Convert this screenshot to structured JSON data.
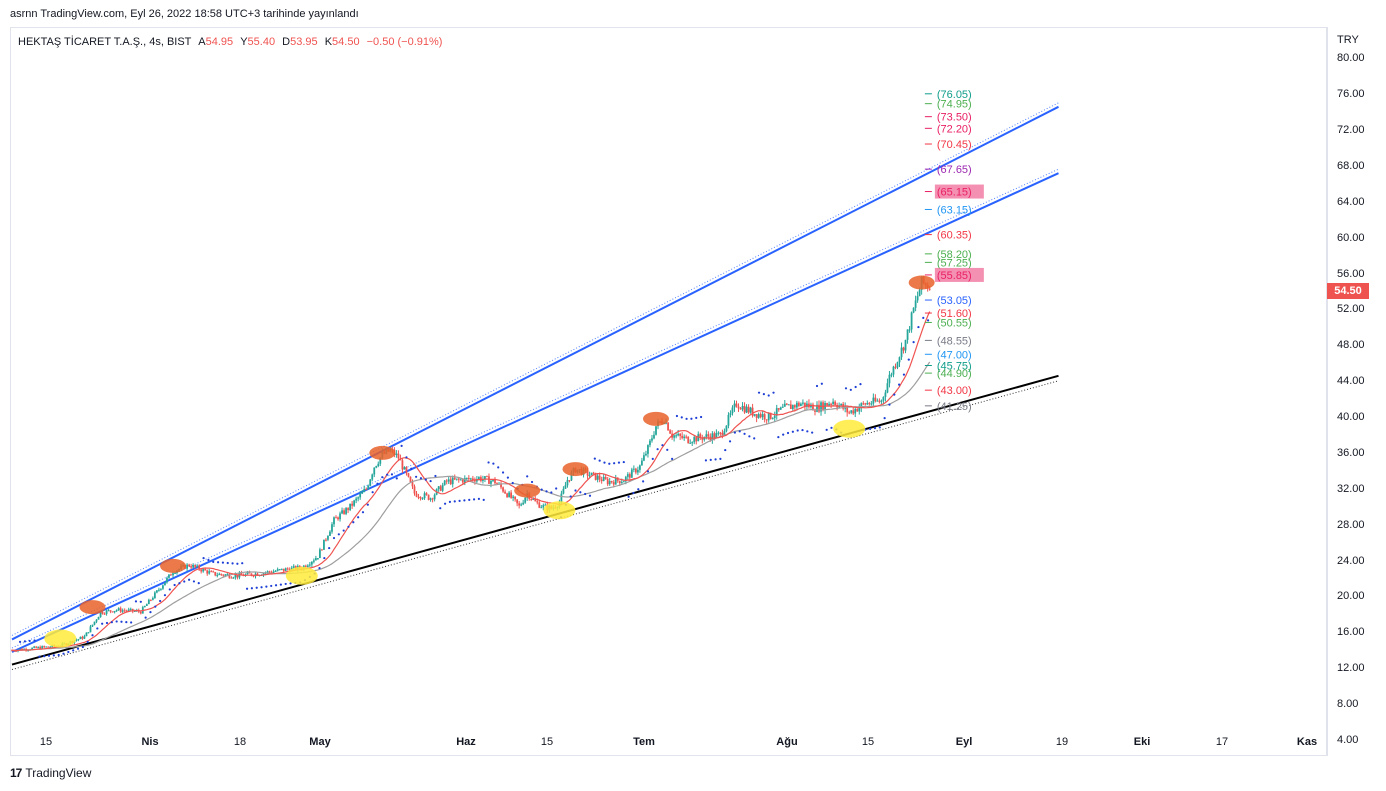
{
  "header": {
    "published": "asrnn TradingView.com, Eyl 26, 2022 18:58 UTC+3 tarihinde yayınlandı"
  },
  "legend": {
    "symbol": "HEKTAŞ TİCARET T.A.Ş., 4s, BIST",
    "open_label": "A",
    "open": "54.95",
    "high_label": "Y",
    "high": "55.40",
    "low_label": "D",
    "low": "53.95",
    "close_label": "K",
    "close": "54.50",
    "change": "−0.50 (−0.91%)"
  },
  "axis": {
    "currency": "TRY",
    "last_price": "54.50",
    "price_ticks": [
      "80.00",
      "76.00",
      "72.00",
      "68.00",
      "64.00",
      "60.00",
      "56.00",
      "52.00",
      "48.00",
      "44.00",
      "40.00",
      "36.00",
      "32.00",
      "28.00",
      "24.00",
      "20.00",
      "16.00",
      "12.00",
      "8.00",
      "4.00"
    ]
  },
  "brand": {
    "name": "TradingView",
    "logo_text": "17"
  },
  "colors": {
    "up": "#26a69a",
    "down": "#ef5350",
    "channel": "#2962ff",
    "support": "#000000",
    "sar": "#1e3fd6",
    "ma_fast": "#ef5350",
    "ma_slow": "#9e9e9e",
    "touch_top": "#e8622a",
    "touch_bottom": "#ffeb3b"
  },
  "chart_data": {
    "type": "candlestick",
    "title": "HEKTAŞ TİCARET T.A.Ş., 4s, BIST",
    "ylabel": "TRY",
    "ylim": [
      2.2,
      83.5
    ],
    "x_ticks": [
      {
        "label": "15",
        "bold": false
      },
      {
        "label": "Nis",
        "bold": true
      },
      {
        "label": "18",
        "bold": false
      },
      {
        "label": "May",
        "bold": true
      },
      {
        "label": "Haz",
        "bold": true
      },
      {
        "label": "15",
        "bold": false
      },
      {
        "label": "Tem",
        "bold": true
      },
      {
        "label": "Ağu",
        "bold": true
      },
      {
        "label": "15",
        "bold": false
      },
      {
        "label": "Eyl",
        "bold": true
      },
      {
        "label": "19",
        "bold": false
      },
      {
        "label": "Eki",
        "bold": true
      },
      {
        "label": "17",
        "bold": false
      },
      {
        "label": "Kas",
        "bold": true
      }
    ],
    "price_path": [
      [
        0,
        14.0
      ],
      [
        6,
        14.5
      ],
      [
        9,
        15.5
      ],
      [
        11,
        18.2
      ],
      [
        13,
        18.5
      ],
      [
        16,
        18.3
      ],
      [
        18,
        20.5
      ],
      [
        20,
        22.8
      ],
      [
        22,
        23.5
      ],
      [
        25,
        22.5
      ],
      [
        28,
        22.3
      ],
      [
        31,
        22.6
      ],
      [
        34,
        23.0
      ],
      [
        36,
        23.2
      ],
      [
        38,
        24.5
      ],
      [
        40,
        28.5
      ],
      [
        42,
        30.0
      ],
      [
        44,
        32.0
      ],
      [
        45,
        34.5
      ],
      [
        46,
        35.8
      ],
      [
        47,
        36.3
      ],
      [
        48,
        35.5
      ],
      [
        50,
        31.5
      ],
      [
        52,
        31.0
      ],
      [
        54,
        32.8
      ],
      [
        56,
        33.0
      ],
      [
        58,
        33.2
      ],
      [
        60,
        32.8
      ],
      [
        62,
        31.0
      ],
      [
        63,
        30.0
      ],
      [
        64,
        31.5
      ],
      [
        65,
        30.5
      ],
      [
        66,
        30.0
      ],
      [
        67,
        29.8
      ],
      [
        68,
        30.5
      ],
      [
        69,
        33.0
      ],
      [
        70,
        34.2
      ],
      [
        72,
        33.5
      ],
      [
        74,
        32.8
      ],
      [
        76,
        33.0
      ],
      [
        78,
        34.5
      ],
      [
        79,
        36.5
      ],
      [
        80,
        39.0
      ],
      [
        81,
        39.8
      ],
      [
        82,
        38.0
      ],
      [
        84,
        37.5
      ],
      [
        86,
        37.8
      ],
      [
        88,
        38.0
      ],
      [
        90,
        41.5
      ],
      [
        92,
        40.5
      ],
      [
        94,
        40.0
      ],
      [
        96,
        41.0
      ],
      [
        98,
        41.5
      ],
      [
        100,
        41.0
      ],
      [
        102,
        41.8
      ],
      [
        104,
        40.5
      ],
      [
        106,
        41.5
      ],
      [
        108,
        41.8
      ],
      [
        109,
        44.5
      ],
      [
        110,
        46.5
      ],
      [
        111,
        48.5
      ],
      [
        112,
        52.0
      ],
      [
        113,
        55.0
      ],
      [
        114,
        54.5
      ]
    ],
    "trend_lines": [
      {
        "name": "upper channel",
        "points": [
          [
            0,
            15.2
          ],
          [
            130,
            74.6
          ]
        ]
      },
      {
        "name": "middle channel",
        "points": [
          [
            0,
            13.8
          ],
          [
            130,
            67.2
          ]
        ]
      },
      {
        "name": "support",
        "points": [
          [
            0,
            12.4
          ],
          [
            130,
            44.6
          ]
        ]
      }
    ],
    "levels": [
      {
        "value": 76.05,
        "label": "(76.05)",
        "color": "#0f9d8a",
        "highlight": false
      },
      {
        "value": 74.95,
        "label": "(74.95)",
        "color": "#4caf50",
        "highlight": false
      },
      {
        "value": 73.5,
        "label": "(73.50)",
        "color": "#e91e63",
        "highlight": false
      },
      {
        "value": 72.2,
        "label": "(72.20)",
        "color": "#e91e63",
        "highlight": false
      },
      {
        "value": 70.45,
        "label": "(70.45)",
        "color": "#f23645",
        "highlight": false
      },
      {
        "value": 67.65,
        "label": "(67.65)",
        "color": "#9c27b0",
        "highlight": false
      },
      {
        "value": 65.15,
        "label": "(65.15)",
        "color": "#e91e63",
        "highlight": true
      },
      {
        "value": 63.15,
        "label": "(63.15)",
        "color": "#2196f3",
        "highlight": false
      },
      {
        "value": 60.35,
        "label": "(60.35)",
        "color": "#f23645",
        "highlight": false
      },
      {
        "value": 58.2,
        "label": "(58.20)",
        "color": "#4caf50",
        "highlight": false
      },
      {
        "value": 57.25,
        "label": "(57.25)",
        "color": "#4caf50",
        "highlight": false
      },
      {
        "value": 55.85,
        "label": "(55.85)",
        "color": "#e91e63",
        "highlight": true
      },
      {
        "value": 53.05,
        "label": "(53.05)",
        "color": "#2962ff",
        "highlight": false
      },
      {
        "value": 51.6,
        "label": "(51.60)",
        "color": "#f23645",
        "highlight": false
      },
      {
        "value": 50.55,
        "label": "(50.55)",
        "color": "#4caf50",
        "highlight": false
      },
      {
        "value": 48.55,
        "label": "(48.55)",
        "color": "#787b86",
        "highlight": false
      },
      {
        "value": 47.0,
        "label": "(47.00)",
        "color": "#2196f3",
        "highlight": false
      },
      {
        "value": 45.75,
        "label": "(45.75)",
        "color": "#0f9d8a",
        "highlight": false
      },
      {
        "value": 44.9,
        "label": "(44.90)",
        "color": "#4caf50",
        "highlight": false
      },
      {
        "value": 43.0,
        "label": "(43.00)",
        "color": "#f23645",
        "highlight": false
      },
      {
        "value": 41.25,
        "label": "(41.25)",
        "color": "#787b86",
        "highlight": false
      }
    ],
    "touches": [
      {
        "type": "top",
        "bar": 10,
        "price": 18.8
      },
      {
        "type": "top",
        "bar": 20,
        "price": 23.4
      },
      {
        "type": "top",
        "bar": 46,
        "price": 36.0
      },
      {
        "type": "top",
        "bar": 64,
        "price": 31.8
      },
      {
        "type": "top",
        "bar": 70,
        "price": 34.2
      },
      {
        "type": "top",
        "bar": 80,
        "price": 39.8
      },
      {
        "type": "top",
        "bar": 113,
        "price": 55.0
      },
      {
        "type": "bottom",
        "bar": 6,
        "price": 15.3
      },
      {
        "type": "bottom",
        "bar": 36,
        "price": 22.3
      },
      {
        "type": "bottom",
        "bar": 68,
        "price": 29.6
      },
      {
        "type": "bottom",
        "bar": 104,
        "price": 38.7
      }
    ]
  }
}
